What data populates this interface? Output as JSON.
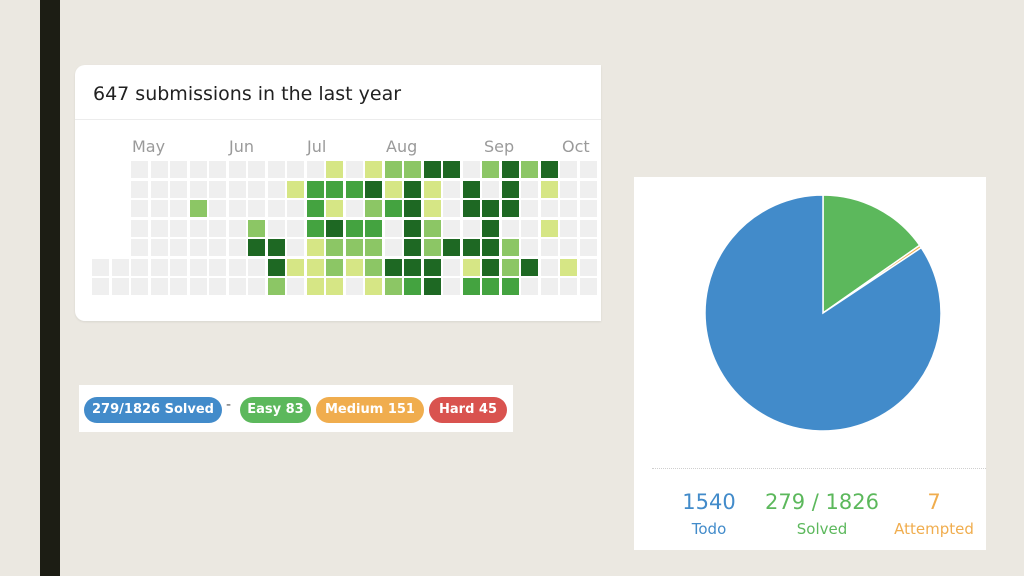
{
  "colors": {
    "background": "#ebe8e1",
    "sidebar_strip": "#1c1d14",
    "heat_empty": "#efefef",
    "heat_levels": [
      "#efefef",
      "#d6e685",
      "#8cc665",
      "#44a340",
      "#1e6823"
    ],
    "todo": "#428bca",
    "solved": "#5cb85c",
    "attempted": "#f0ad4e",
    "hard": "#d9534f"
  },
  "heatmap": {
    "title": "647 submissions in the last year",
    "months": [
      "May",
      "Jun",
      "Jul",
      "Aug",
      "Sep",
      "Oct"
    ],
    "weeks_visible": 26,
    "levels": [
      [
        0,
        0,
        0,
        0,
        0,
        0,
        0,
        0,
        0,
        0,
        0,
        0,
        1,
        0,
        1,
        2,
        2,
        4,
        4,
        0,
        2,
        4,
        2,
        4,
        0,
        0
      ],
      [
        0,
        0,
        0,
        0,
        0,
        0,
        0,
        0,
        0,
        0,
        1,
        3,
        3,
        3,
        4,
        1,
        4,
        1,
        0,
        4,
        0,
        4,
        0,
        1,
        0,
        0
      ],
      [
        0,
        0,
        0,
        0,
        0,
        2,
        0,
        0,
        0,
        0,
        0,
        3,
        1,
        0,
        2,
        3,
        4,
        1,
        0,
        4,
        4,
        4,
        0,
        0,
        0,
        0
      ],
      [
        0,
        0,
        0,
        0,
        0,
        0,
        0,
        0,
        2,
        0,
        0,
        3,
        4,
        3,
        3,
        0,
        4,
        2,
        0,
        0,
        4,
        0,
        0,
        1,
        0,
        0
      ],
      [
        0,
        0,
        0,
        0,
        0,
        0,
        0,
        0,
        4,
        4,
        0,
        1,
        2,
        2,
        2,
        0,
        4,
        2,
        4,
        4,
        4,
        2,
        0,
        0,
        0,
        0
      ],
      [
        0,
        0,
        0,
        0,
        0,
        0,
        0,
        0,
        0,
        4,
        1,
        1,
        2,
        1,
        2,
        4,
        4,
        4,
        0,
        1,
        4,
        2,
        4,
        0,
        1,
        0
      ],
      [
        0,
        0,
        0,
        0,
        0,
        0,
        0,
        0,
        0,
        2,
        0,
        1,
        1,
        0,
        1,
        2,
        3,
        4,
        0,
        3,
        3,
        3,
        0,
        0,
        0,
        0
      ]
    ],
    "hidden": [
      [
        1,
        1,
        0,
        0,
        0,
        0,
        0,
        0,
        0,
        0,
        0,
        0,
        0,
        0,
        0,
        0,
        0,
        0,
        0,
        0,
        0,
        0,
        0,
        0,
        0,
        0
      ],
      [
        1,
        1,
        0,
        0,
        0,
        0,
        0,
        0,
        0,
        0,
        0,
        0,
        0,
        0,
        0,
        0,
        0,
        0,
        0,
        0,
        0,
        0,
        0,
        0,
        0,
        0
      ],
      [
        1,
        1,
        0,
        0,
        0,
        0,
        0,
        0,
        0,
        0,
        0,
        0,
        0,
        0,
        0,
        0,
        0,
        0,
        0,
        0,
        0,
        0,
        0,
        0,
        0,
        0
      ],
      [
        1,
        1,
        0,
        0,
        0,
        0,
        0,
        0,
        0,
        0,
        0,
        0,
        0,
        0,
        0,
        0,
        0,
        0,
        0,
        0,
        0,
        0,
        0,
        0,
        0,
        0
      ],
      [
        1,
        1,
        0,
        0,
        0,
        0,
        0,
        0,
        0,
        0,
        0,
        0,
        0,
        0,
        0,
        0,
        0,
        0,
        0,
        0,
        0,
        0,
        0,
        0,
        0,
        0
      ],
      [
        0,
        0,
        0,
        0,
        0,
        0,
        0,
        0,
        0,
        0,
        0,
        0,
        0,
        0,
        0,
        0,
        0,
        0,
        0,
        0,
        0,
        0,
        0,
        0,
        0,
        0
      ],
      [
        0,
        0,
        0,
        0,
        0,
        0,
        0,
        0,
        0,
        0,
        0,
        0,
        0,
        0,
        0,
        0,
        0,
        0,
        0,
        0,
        0,
        0,
        0,
        0,
        0,
        0
      ]
    ]
  },
  "badges": {
    "solved": "279/1826 Solved",
    "separator": "-",
    "easy": "Easy 83",
    "medium": "Medium 151",
    "hard": "Hard 45"
  },
  "pie": {
    "slices": [
      {
        "key": "todo",
        "value": 1540,
        "color": "#428bca"
      },
      {
        "key": "solved",
        "value": 279,
        "color": "#5cb85c"
      },
      {
        "key": "attempted",
        "value": 7,
        "color": "#f0ad4e"
      }
    ],
    "stats": {
      "todo_value": "1540",
      "todo_label": "Todo",
      "solved_value": "279 / 1826",
      "solved_label": "Solved",
      "attempted_value": "7",
      "attempted_label": "Attempted"
    }
  }
}
